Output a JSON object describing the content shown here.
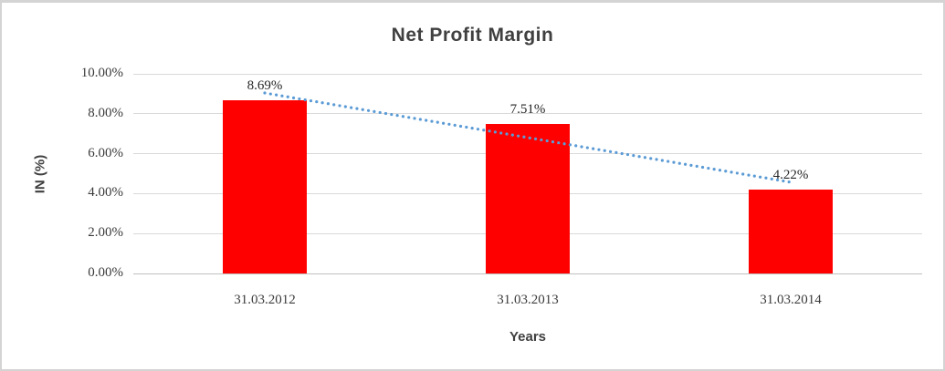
{
  "frame": {
    "background": "#ffffff",
    "border_color": "#d4d4d4"
  },
  "chart_data": {
    "type": "bar",
    "title": "Net Profit Margin",
    "xlabel": "Years",
    "ylabel": "IN (%)",
    "categories": [
      "31.03.2012",
      "31.03.2013",
      "31.03.2014"
    ],
    "values": [
      8.69,
      7.51,
      4.22
    ],
    "data_labels": [
      "8.69%",
      "7.51%",
      "4.22%"
    ],
    "yticks": [
      {
        "value": 10,
        "label": "10.00%"
      },
      {
        "value": 8,
        "label": "8.00%"
      },
      {
        "value": 6,
        "label": "6.00%"
      },
      {
        "value": 4,
        "label": "4.00%"
      },
      {
        "value": 2,
        "label": "2.00%"
      },
      {
        "value": 0,
        "label": "0.00%"
      }
    ],
    "ylim": [
      0,
      10
    ],
    "grid": "horizontal",
    "legend": "none",
    "bar_color": "#FF0000",
    "gridline_color": "#D9D9D9",
    "axis_line_color": "#BFBFBF",
    "trendline": {
      "type": "linear",
      "style": "dotted",
      "color": "#5B9BD5"
    }
  }
}
